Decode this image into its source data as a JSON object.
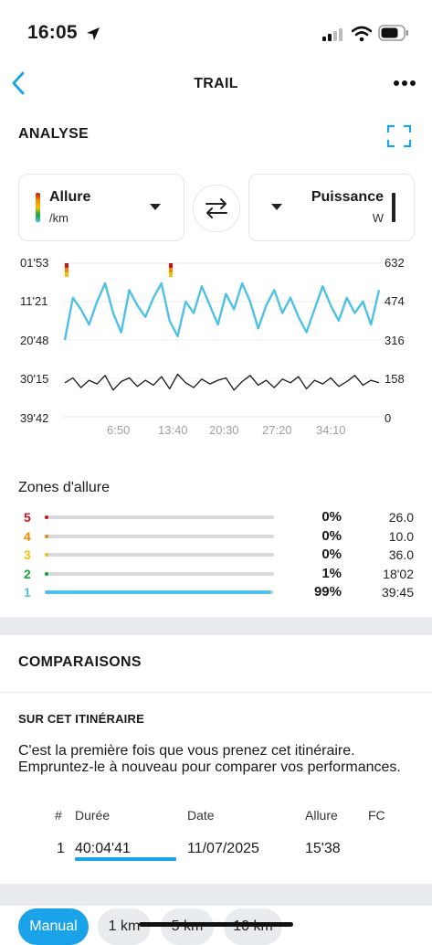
{
  "status_bar": {
    "time": "16:05"
  },
  "nav": {
    "title": "TRAIL"
  },
  "analysis": {
    "title": "ANALYSE",
    "left_selector": {
      "label": "Allure",
      "unit": "/km"
    },
    "right_selector": {
      "label": "Puissance",
      "unit": "W"
    }
  },
  "chart_data": {
    "type": "line",
    "left_axis": {
      "ticks": [
        "01'53",
        "11'21",
        "20'48",
        "30'15",
        "39'42"
      ],
      "reversed": true
    },
    "right_axis": {
      "ticks": [
        "632",
        "474",
        "316",
        "158",
        "0"
      ],
      "ylim": [
        0,
        632
      ]
    },
    "x_ticks": [
      "6:50",
      "13:40",
      "20:30",
      "27:20",
      "34:10"
    ],
    "series": [
      {
        "color": "#4fc0e6",
        "values": [
          20,
          31,
          28,
          24,
          30,
          35,
          27,
          22,
          33,
          29,
          26,
          31,
          36,
          25,
          21,
          30,
          27,
          34,
          29,
          24,
          32,
          28,
          35,
          30,
          23,
          29,
          33,
          27,
          31,
          26,
          22,
          28,
          34,
          29,
          25,
          31,
          27,
          30,
          24,
          33
        ]
      },
      {
        "color": "#1a1a1a",
        "values": [
          140,
          160,
          120,
          150,
          135,
          170,
          110,
          145,
          160,
          125,
          150,
          130,
          165,
          115,
          175,
          140,
          120,
          155,
          135,
          150,
          160,
          110,
          145,
          170,
          130,
          150,
          120,
          155,
          140,
          165,
          115,
          150,
          135,
          160,
          125,
          145,
          170,
          130,
          150,
          140
        ]
      }
    ]
  },
  "zones": {
    "title": "Zones d'allure",
    "rows": [
      {
        "num": "5",
        "pct": "0%",
        "val": "26.0",
        "color": "#d0101b",
        "fraction": 0.0
      },
      {
        "num": "4",
        "pct": "0%",
        "val": "10.0",
        "color": "#f08a00",
        "fraction": 0.0
      },
      {
        "num": "3",
        "pct": "0%",
        "val": "36.0",
        "color": "#f6c000",
        "fraction": 0.0
      },
      {
        "num": "2",
        "pct": "1%",
        "val": "18'02",
        "color": "#13a538",
        "fraction": 0.01
      },
      {
        "num": "1",
        "pct": "99%",
        "val": "39:45",
        "color": "#4fc0e6",
        "fraction": 0.99
      }
    ]
  },
  "comparisons": {
    "title": "COMPARAISONS",
    "subtitle": "SUR CET ITINÉRAIRE",
    "description": "C'est la première fois que vous prenez cet itinéraire. Empruntez-le à nouveau pour comparer vos performances.",
    "table": {
      "headers": [
        "#",
        "Durée",
        "Date",
        "Allure",
        "FC"
      ],
      "row": {
        "num": "1",
        "duree": "40:04'41",
        "date": "11/07/2025",
        "allure": "15'38",
        "fc": ""
      }
    }
  },
  "filters": [
    "Manual",
    "1 km",
    "5 km",
    "10 km"
  ],
  "colors": {
    "accent": "#1aa3e8"
  }
}
